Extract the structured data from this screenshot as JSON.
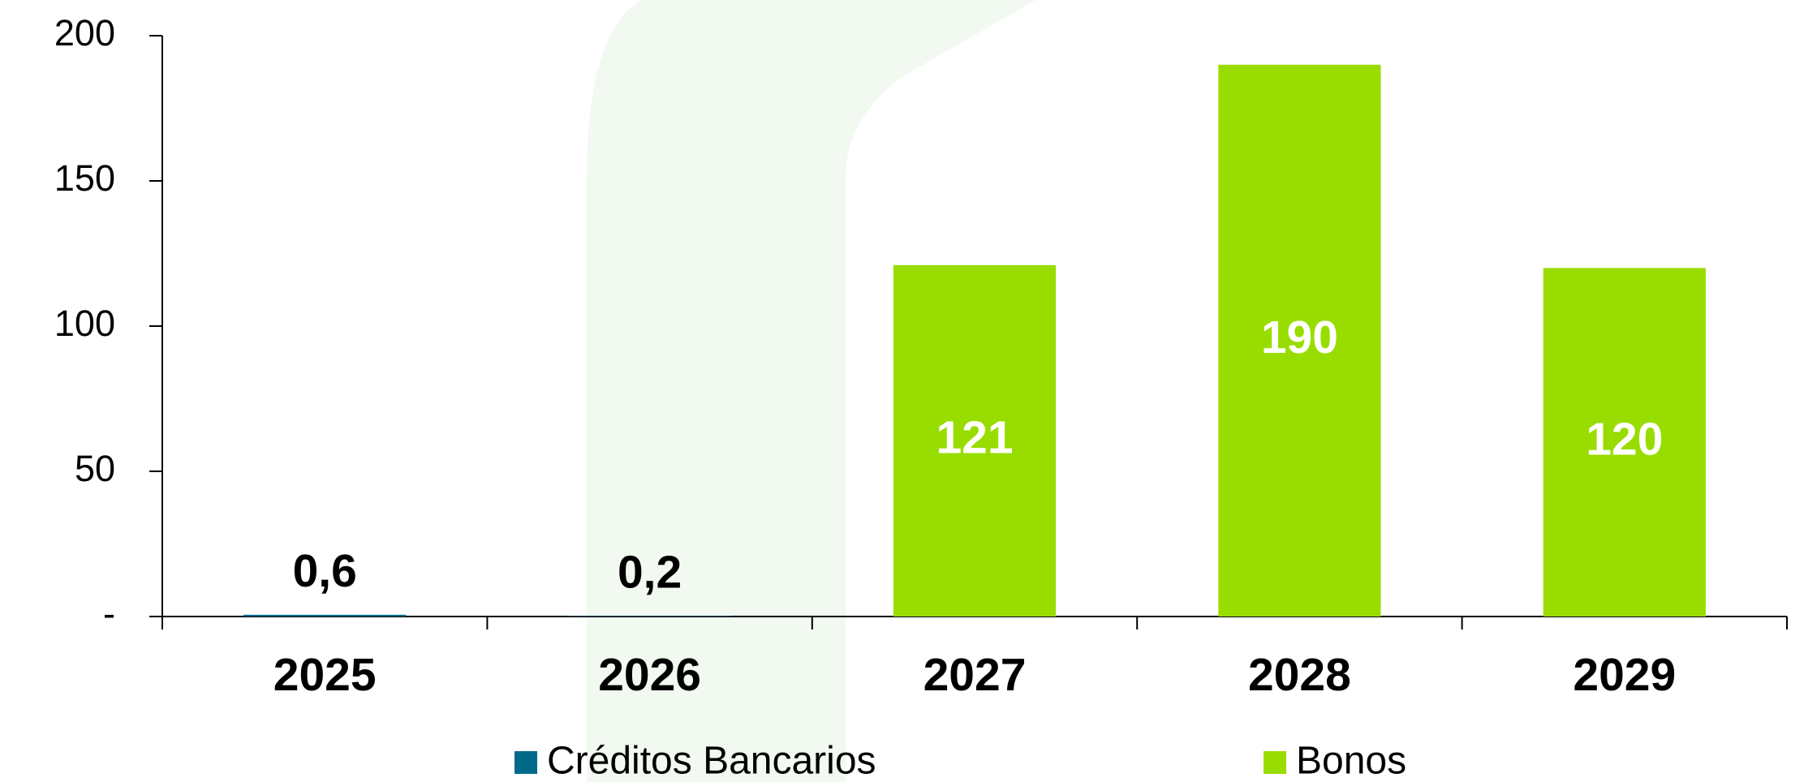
{
  "chart_data": {
    "type": "bar",
    "categories": [
      "2025",
      "2026",
      "2027",
      "2028",
      "2029"
    ],
    "series": [
      {
        "name": "Créditos Bancarios",
        "color": "#006a8a",
        "values": [
          0.6,
          0.2,
          null,
          null,
          null
        ],
        "value_labels": [
          "0,6",
          "0,2",
          null,
          null,
          null
        ]
      },
      {
        "name": "Bonos",
        "color": "#99dd00",
        "values": [
          null,
          null,
          121,
          190,
          120
        ]
      }
    ],
    "ylim": [
      0,
      200
    ],
    "yticks": [
      {
        "value": 0,
        "label": "-"
      },
      50,
      100,
      150,
      200
    ],
    "legend": "bottom"
  }
}
